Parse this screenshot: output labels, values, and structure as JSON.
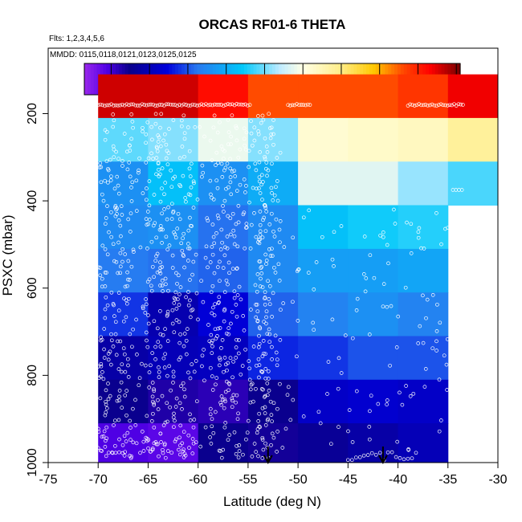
{
  "chart_data": {
    "type": "heatmap",
    "title": "ORCAS RF01-6 THETA",
    "flights_note": "Flts: 1,2,3,4,5,6",
    "dates_note": "MMDD: 0115,0118,0121,0123,0125,0125",
    "xlabel": "Latitude (deg N)",
    "ylabel": "PSXC (mbar)",
    "xlim": [
      -75,
      -30
    ],
    "ylim": [
      1000,
      50
    ],
    "y_reversed": true,
    "x_ticks": [
      -75,
      -70,
      -65,
      -60,
      -55,
      -50,
      -45,
      -40,
      -35,
      -30
    ],
    "y_ticks": [
      200,
      400,
      600,
      800,
      1000
    ],
    "colorbar": {
      "range": [
        273,
        371
      ],
      "ticks": [
        280,
        290,
        300,
        310,
        320,
        330,
        340,
        350,
        360,
        370
      ]
    },
    "lat_edges": [
      -70,
      -65,
      -60,
      -55,
      -50,
      -45,
      -40,
      -35,
      -30
    ],
    "pressure_bins": [
      {
        "top": 110,
        "bottom": 210
      },
      {
        "top": 210,
        "bottom": 310
      },
      {
        "top": 310,
        "bottom": 410
      },
      {
        "top": 410,
        "bottom": 510
      },
      {
        "top": 510,
        "bottom": 610
      },
      {
        "top": 610,
        "bottom": 710
      },
      {
        "top": 710,
        "bottom": 810
      },
      {
        "top": 810,
        "bottom": 910
      },
      {
        "top": 910,
        "bottom": 1010
      }
    ],
    "theta_values": [
      [
        366,
        366,
        362,
        356,
        356,
        356,
        358,
        364
      ],
      [
        319,
        321,
        328,
        321,
        332,
        333,
        334,
        338
      ],
      [
        306,
        313,
        306,
        310,
        327,
        327,
        322,
        318
      ],
      [
        305,
        306,
        302,
        305,
        313,
        315,
        316,
        null
      ],
      [
        303,
        302,
        301,
        305,
        308,
        308,
        309,
        null
      ],
      [
        298,
        289,
        294,
        301,
        304,
        306,
        304,
        null
      ],
      [
        288,
        290,
        291,
        297,
        298,
        300,
        300,
        null
      ],
      [
        285,
        283,
        282,
        285,
        292,
        293,
        292,
        null
      ],
      [
        279,
        278,
        285,
        284,
        286,
        288,
        290,
        null
      ]
    ],
    "arrows_lat": [
      -53,
      -41.5
    ],
    "grid": false
  }
}
